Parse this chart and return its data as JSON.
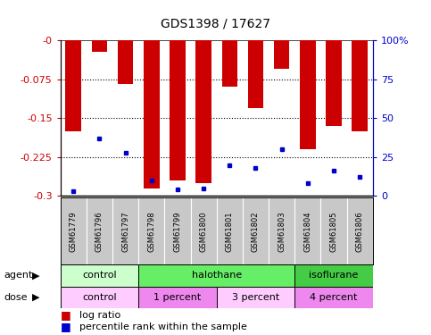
{
  "title": "GDS1398 / 17627",
  "samples": [
    "GSM61779",
    "GSM61796",
    "GSM61797",
    "GSM61798",
    "GSM61799",
    "GSM61800",
    "GSM61801",
    "GSM61802",
    "GSM61803",
    "GSM61804",
    "GSM61805",
    "GSM61806"
  ],
  "log_ratio": [
    -0.175,
    -0.022,
    -0.085,
    -0.285,
    -0.27,
    -0.275,
    -0.09,
    -0.13,
    -0.055,
    -0.21,
    -0.165,
    -0.175
  ],
  "percentile_rank": [
    3,
    37,
    28,
    10,
    4,
    5,
    20,
    18,
    30,
    8,
    16,
    12
  ],
  "ylim_left": [
    -0.3,
    0
  ],
  "ylim_right": [
    0,
    100
  ],
  "yticks_left": [
    0,
    -0.075,
    -0.15,
    -0.225,
    -0.3
  ],
  "ytick_labels_left": [
    "-0",
    "-0.075",
    "-0.15",
    "-0.225",
    "-0.3"
  ],
  "yticks_right": [
    0,
    25,
    50,
    75,
    100
  ],
  "ytick_labels_right": [
    "0",
    "25",
    "50",
    "75",
    "100%"
  ],
  "bar_color": "#cc0000",
  "dot_color": "#0000cc",
  "agent_groups": [
    {
      "label": "control",
      "start": 0,
      "end": 3,
      "color": "#ccffcc"
    },
    {
      "label": "halothane",
      "start": 3,
      "end": 9,
      "color": "#66ee66"
    },
    {
      "label": "isoflurane",
      "start": 9,
      "end": 12,
      "color": "#44cc44"
    }
  ],
  "dose_groups": [
    {
      "label": "control",
      "start": 0,
      "end": 3,
      "color": "#ffccff"
    },
    {
      "label": "1 percent",
      "start": 3,
      "end": 6,
      "color": "#ee88ee"
    },
    {
      "label": "3 percent",
      "start": 6,
      "end": 9,
      "color": "#ffccff"
    },
    {
      "label": "4 percent",
      "start": 9,
      "end": 12,
      "color": "#ee88ee"
    }
  ],
  "legend_items": [
    {
      "label": "log ratio",
      "color": "#cc0000"
    },
    {
      "label": "percentile rank within the sample",
      "color": "#0000cc"
    }
  ],
  "background_color": "#ffffff",
  "plot_bg_color": "#ffffff",
  "tick_label_color_left": "#cc0000",
  "tick_label_color_right": "#0000cc",
  "sample_bg_color": "#c8c8c8",
  "sample_border_color": "#ffffff"
}
